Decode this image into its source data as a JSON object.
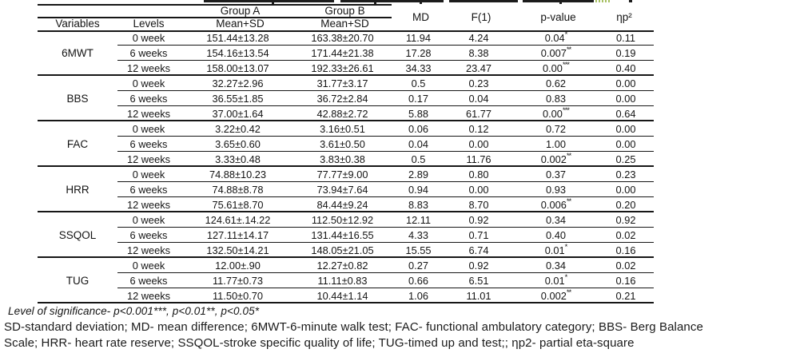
{
  "table": {
    "header": {
      "group_a": "Group A",
      "group_b": "Group B",
      "variables": "Variables",
      "levels": "Levels",
      "mean_sd_a": "Mean+SD",
      "mean_sd_b": "Mean+SD",
      "md": "MD",
      "f": "F(1)",
      "p_value": "p-value",
      "eta": "ηp²"
    },
    "groups": [
      {
        "variable": "6MWT",
        "rows": [
          {
            "level": "0 week",
            "group_a": "151.44±13.28",
            "group_b": "163.38±20.70",
            "md": "11.94",
            "f": "4.24",
            "p": "0.04",
            "p_stars": "*",
            "eta": "0.11"
          },
          {
            "level": "6 weeks",
            "group_a": "154.16±13.54",
            "group_b": "171.44±21.38",
            "md": "17.28",
            "f": "8.38",
            "p": "0.007",
            "p_stars": "**",
            "eta": "0.19"
          },
          {
            "level": "12 weeks",
            "group_a": "158.00±13.07",
            "group_b": "192.33±26.61",
            "md": "34.33",
            "f": "23.47",
            "p": "0.00",
            "p_stars": "***",
            "eta": "0.40"
          }
        ]
      },
      {
        "variable": "BBS",
        "rows": [
          {
            "level": "0 week",
            "group_a": "32.27±2.96",
            "group_b": "31.77±3.17",
            "md": "0.5",
            "f": "0.23",
            "p": "0.62",
            "p_stars": "",
            "eta": "0.00"
          },
          {
            "level": "6 weeks",
            "group_a": "36.55±1.85",
            "group_b": "36.72±2.84",
            "md": "0.17",
            "f": "0.04",
            "p": "0.83",
            "p_stars": "",
            "eta": "0.00"
          },
          {
            "level": "12 weeks",
            "group_a": "37.00±1.64",
            "group_b": "42.88±2.72",
            "md": "5.88",
            "f": "61.77",
            "p": "0.00",
            "p_stars": "***",
            "eta": "0.64"
          }
        ]
      },
      {
        "variable": "FAC",
        "rows": [
          {
            "level": "0 week",
            "group_a": "3.22±0.42",
            "group_b": "3.16±0.51",
            "md": "0.06",
            "f": "0.12",
            "p": "0.72",
            "p_stars": "",
            "eta": "0.00"
          },
          {
            "level": "6 weeks",
            "group_a": "3.65±0.60",
            "group_b": "3.61±0.50",
            "md": "0.04",
            "f": "0.00",
            "p": "1.00",
            "p_stars": "",
            "eta": "0.00"
          },
          {
            "level": "12 weeks",
            "group_a": "3.33±0.48",
            "group_b": "3.83±0.38",
            "md": "0.5",
            "f": "11.76",
            "p": "0.002",
            "p_stars": "**",
            "eta": "0.25"
          }
        ]
      },
      {
        "variable": "HRR",
        "rows": [
          {
            "level": "0 week",
            "group_a": "74.88±10.23",
            "group_b": "77.77±9.00",
            "md": "2.89",
            "f": "0.80",
            "p": "0.37",
            "p_stars": "",
            "eta": "0.23"
          },
          {
            "level": "6 weeks",
            "group_a": "74.88±8.78",
            "group_b": "73.94±7.64",
            "md": "0.94",
            "f": "0.00",
            "p": "0.93",
            "p_stars": "",
            "eta": "0.00"
          },
          {
            "level": "12 weeks",
            "group_a": "75.61±8.70",
            "group_b": "84.44±9.24",
            "md": "8.83",
            "f": "8.70",
            "p": "0.006",
            "p_stars": "**",
            "eta": "0.20"
          }
        ]
      },
      {
        "variable": "SSQOL",
        "rows": [
          {
            "level": "0 week",
            "group_a": "124.61±.14.22",
            "group_b": "112.50±12.92",
            "md": "12.11",
            "f": "0.92",
            "p": "0.34",
            "p_stars": "",
            "eta": "0.92"
          },
          {
            "level": "6 weeks",
            "group_a": "127.11±14.17",
            "group_b": "131.44±16.55",
            "md": "4.33",
            "f": "0.71",
            "p": "0.40",
            "p_stars": "",
            "eta": "0.02"
          },
          {
            "level": "12 weeks",
            "group_a": "132.50±14.21",
            "group_b": "148.05±21.05",
            "md": "15.55",
            "f": "6.74",
            "p": "0.01",
            "p_stars": "*",
            "eta": "0.16"
          }
        ]
      },
      {
        "variable": "TUG",
        "rows": [
          {
            "level": "0 week",
            "group_a": "12.00±.90",
            "group_b": "12.27±0.82",
            "md": "0.27",
            "f": "0.92",
            "p": "0.34",
            "p_stars": "",
            "eta": "0.02"
          },
          {
            "level": "6 weeks",
            "group_a": "11.77±0.73",
            "group_b": "11.11±0.83",
            "md": "0.66",
            "f": "6.51",
            "p": "0.01",
            "p_stars": "*",
            "eta": "0.16"
          },
          {
            "level": "12 weeks",
            "group_a": "11.50±0.70",
            "group_b": "10.44±1.14",
            "md": "1.06",
            "f": "11.01",
            "p": "0.002",
            "p_stars": "**",
            "eta": "0.21"
          }
        ]
      }
    ]
  },
  "footnotes": {
    "significance": "Level of significance- p<0.001***, p<0.01**, p<0.05*",
    "abbrev_lines": [
      "SD-standard deviation; MD- mean difference; 6MWT-6-minute walk test; FAC- functional ambulatory  category;  BBS- Berg Balance",
      "Scale; HRR- heart rate reserve; SSQOL-stroke specific quality of life; TUG-timed up and test;; ηp2- partial eta-square"
    ]
  }
}
